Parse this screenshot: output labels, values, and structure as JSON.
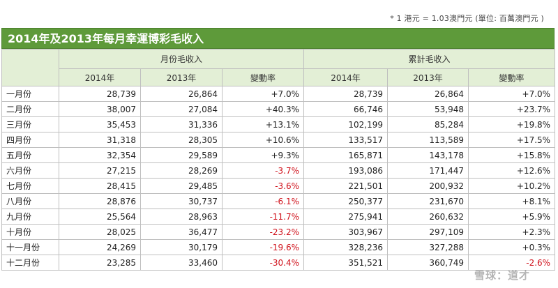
{
  "note": "* 1 港元 = 1.03澳門元 (單位: 百萬澳門元 )",
  "title": "2014年及2013年每月幸運博彩毛收入",
  "group_headers": {
    "monthly": "月份毛收入",
    "cumulative": "累計毛收入"
  },
  "sub_headers": [
    "2014年",
    "2013年",
    "變動率",
    "2014年",
    "2013年",
    "變動率"
  ],
  "rows": [
    {
      "month": "一月份",
      "m2014": "28,739",
      "m2013": "26,864",
      "mchg": "+7.0%",
      "c2014": "28,739",
      "c2013": "26,864",
      "cchg": "+7.0%"
    },
    {
      "month": "二月份",
      "m2014": "38,007",
      "m2013": "27,084",
      "mchg": "+40.3%",
      "c2014": "66,746",
      "c2013": "53,948",
      "cchg": "+23.7%"
    },
    {
      "month": "三月份",
      "m2014": "35,453",
      "m2013": "31,336",
      "mchg": "+13.1%",
      "c2014": "102,199",
      "c2013": "85,284",
      "cchg": "+19.8%"
    },
    {
      "month": "四月份",
      "m2014": "31,318",
      "m2013": "28,305",
      "mchg": "+10.6%",
      "c2014": "133,517",
      "c2013": "113,589",
      "cchg": "+17.5%"
    },
    {
      "month": "五月份",
      "m2014": "32,354",
      "m2013": "29,589",
      "mchg": "+9.3%",
      "c2014": "165,871",
      "c2013": "143,178",
      "cchg": "+15.8%"
    },
    {
      "month": "六月份",
      "m2014": "27,215",
      "m2013": "28,269",
      "mchg": "-3.7%",
      "c2014": "193,086",
      "c2013": "171,447",
      "cchg": "+12.6%"
    },
    {
      "month": "七月份",
      "m2014": "28,415",
      "m2013": "29,485",
      "mchg": "-3.6%",
      "c2014": "221,501",
      "c2013": "200,932",
      "cchg": "+10.2%"
    },
    {
      "month": "八月份",
      "m2014": "28,876",
      "m2013": "30,737",
      "mchg": "-6.1%",
      "c2014": "250,377",
      "c2013": "231,670",
      "cchg": "+8.1%"
    },
    {
      "month": "九月份",
      "m2014": "25,564",
      "m2013": "28,963",
      "mchg": "-11.7%",
      "c2014": "275,941",
      "c2013": "260,632",
      "cchg": "+5.9%"
    },
    {
      "month": "十月份",
      "m2014": "28,025",
      "m2013": "36,477",
      "mchg": "-23.2%",
      "c2014": "303,967",
      "c2013": "297,109",
      "cchg": "+2.3%"
    },
    {
      "month": "十一月份",
      "m2014": "24,269",
      "m2013": "30,179",
      "mchg": "-19.6%",
      "c2014": "328,236",
      "c2013": "327,288",
      "cchg": "+0.3%"
    },
    {
      "month": "十二月份",
      "m2014": "23,285",
      "m2013": "33,460",
      "mchg": "-30.4%",
      "c2014": "351,521",
      "c2013": "360,749",
      "cchg": "-2.6%"
    }
  ],
  "watermark": "雪球：道才",
  "colors": {
    "header_green": "#5e9a3a",
    "subheader_bg": "#e3efd6",
    "negative": "#d0101a"
  }
}
